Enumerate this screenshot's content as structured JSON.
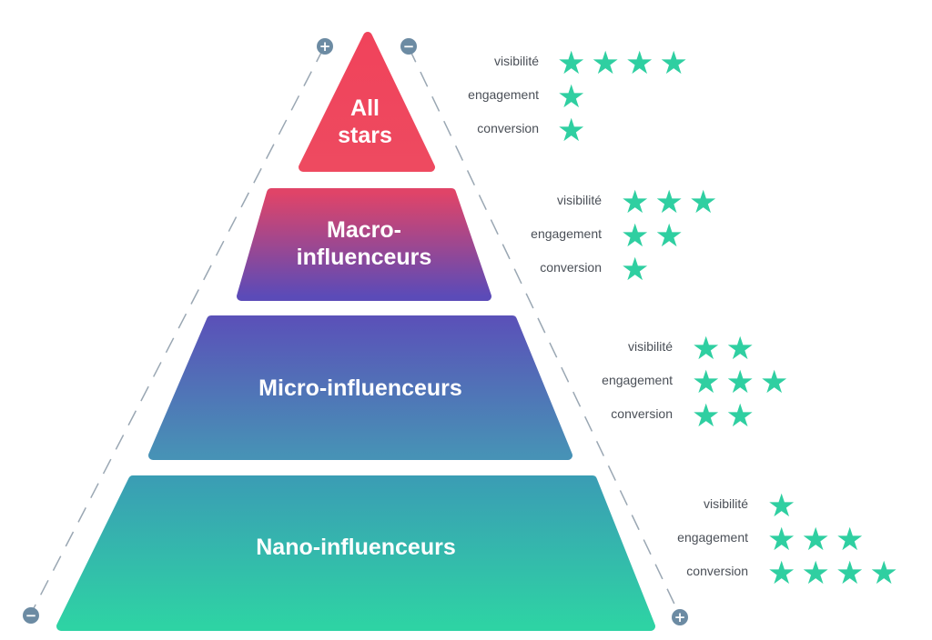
{
  "tiers": [
    {
      "id": "all-stars",
      "line1": "All",
      "line2": "stars",
      "gradient": [
        "#f0435b",
        "#ee4a60"
      ],
      "ratings": [
        {
          "metric": "visibilité",
          "stars": 4
        },
        {
          "metric": "engagement",
          "stars": 1
        },
        {
          "metric": "conversion",
          "stars": 1
        }
      ]
    },
    {
      "id": "macro",
      "line1": "Macro-",
      "line2": "influenceurs",
      "gradient": [
        "#e04468",
        "#5b4bb8"
      ],
      "ratings": [
        {
          "metric": "visibilité",
          "stars": 3
        },
        {
          "metric": "engagement",
          "stars": 2
        },
        {
          "metric": "conversion",
          "stars": 1
        }
      ]
    },
    {
      "id": "micro",
      "line1": "Micro-influenceurs",
      "line2": "",
      "gradient": [
        "#5a52b8",
        "#4792b6"
      ],
      "ratings": [
        {
          "metric": "visibilité",
          "stars": 2
        },
        {
          "metric": "engagement",
          "stars": 3
        },
        {
          "metric": "conversion",
          "stars": 2
        }
      ]
    },
    {
      "id": "nano",
      "line1": "Nano-influenceurs",
      "line2": "",
      "gradient": [
        "#3a9eb4",
        "#2ed3a4"
      ],
      "ratings": [
        {
          "metric": "visibilité",
          "stars": 1
        },
        {
          "metric": "engagement",
          "stars": 3
        },
        {
          "metric": "conversion",
          "stars": 4
        }
      ]
    }
  ],
  "axes": {
    "left": {
      "top_symbol": "+",
      "bottom_symbol": "−"
    },
    "right": {
      "top_symbol": "−",
      "bottom_symbol": "+"
    }
  },
  "colors": {
    "star": "#2fcfa1",
    "marker": "#6c8ba3",
    "dash": "#9aa7b3",
    "metric_text": "#4a4f57"
  },
  "star_glyph": "★"
}
